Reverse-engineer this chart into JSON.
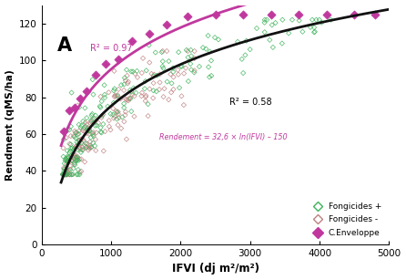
{
  "xlabel": "IFVI (dj m²/m²)",
  "ylabel": "Rendment (qMS/ha)",
  "xlim": [
    0,
    5000
  ],
  "ylim": [
    0,
    130
  ],
  "xticks": [
    0,
    1000,
    2000,
    3000,
    4000,
    5000
  ],
  "yticks": [
    0,
    20,
    40,
    60,
    80,
    100,
    120
  ],
  "panel_label": "A",
  "r2_black": "R² = 0.58",
  "r2_pink": "R² = 0.97",
  "equation": "Rendement = 32,6 × ln(IFVI) – 150",
  "color_fong_plus": "#3db35a",
  "color_fong_minus": "#c08080",
  "color_envelope": "#c0389e",
  "color_black_curve": "#111111",
  "color_pink_curve": "#c0389e",
  "legend_fong_plus": "Fongicides +",
  "legend_fong_minus": "Fongicides -",
  "legend_envelope": "C.Enveloppe",
  "black_a": 32.6,
  "black_b": -150,
  "pink_a": 32.6,
  "pink_b": -130,
  "seed": 42,
  "n_fong_plus": 200,
  "n_fong_minus": 180
}
